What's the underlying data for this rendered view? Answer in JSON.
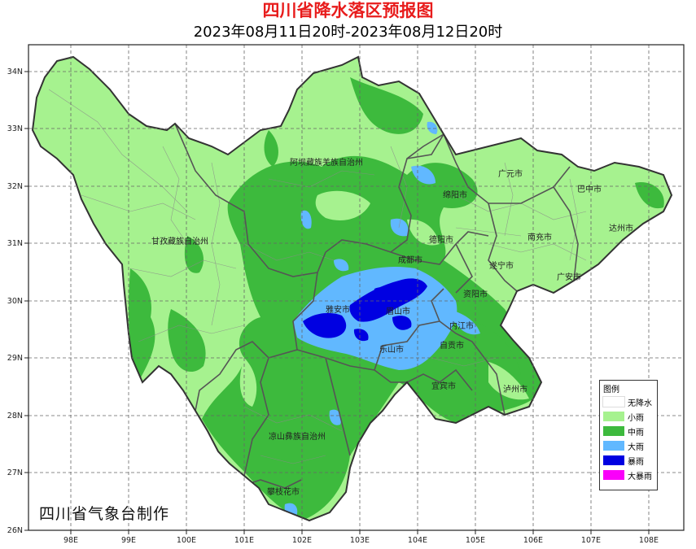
{
  "title": "四川省降水落区预报图",
  "subtitle": "2023年08月11日20时-2023年08月12日20时",
  "credit": "四川省气象台制作",
  "axes": {
    "lon_ticks": [
      "98E",
      "99E",
      "100E",
      "101E",
      "102E",
      "103E",
      "104E",
      "105E",
      "106E",
      "107E",
      "108E"
    ],
    "lat_ticks": [
      "34N",
      "33N",
      "32N",
      "31N",
      "30N",
      "29N",
      "28N",
      "27N",
      "26N"
    ]
  },
  "cities": {
    "aba": "阿坝藏族羌族自治州",
    "ganzi": "甘孜藏族自治州",
    "liangshan": "凉山彝族自治州",
    "panzhihua": "攀枝花市",
    "guangyuan": "广元市",
    "bazhong": "巴中市",
    "mianyang": "绵阳市",
    "deyang": "德阳市",
    "nanchong": "南充市",
    "dazhou": "达州市",
    "chengdu": "成都市",
    "suining": "遂宁市",
    "guangan": "广安市",
    "ziyang": "资阳市",
    "yaan": "雅安市",
    "meishan": "眉山市",
    "neijiang": "内江市",
    "leshan": "乐山市",
    "zigong": "自贡市",
    "yibin": "宜宾市",
    "luzhou": "泸州市"
  },
  "legend": {
    "title": "图例",
    "items": [
      {
        "label": "无降水",
        "color": "#ffffff"
      },
      {
        "label": "小雨",
        "color": "#a6f28f"
      },
      {
        "label": "中雨",
        "color": "#3dba3d"
      },
      {
        "label": "大雨",
        "color": "#61b8ff"
      },
      {
        "label": "暴雨",
        "color": "#0000e1"
      },
      {
        "label": "大暴雨",
        "color": "#fa00fa"
      }
    ]
  }
}
